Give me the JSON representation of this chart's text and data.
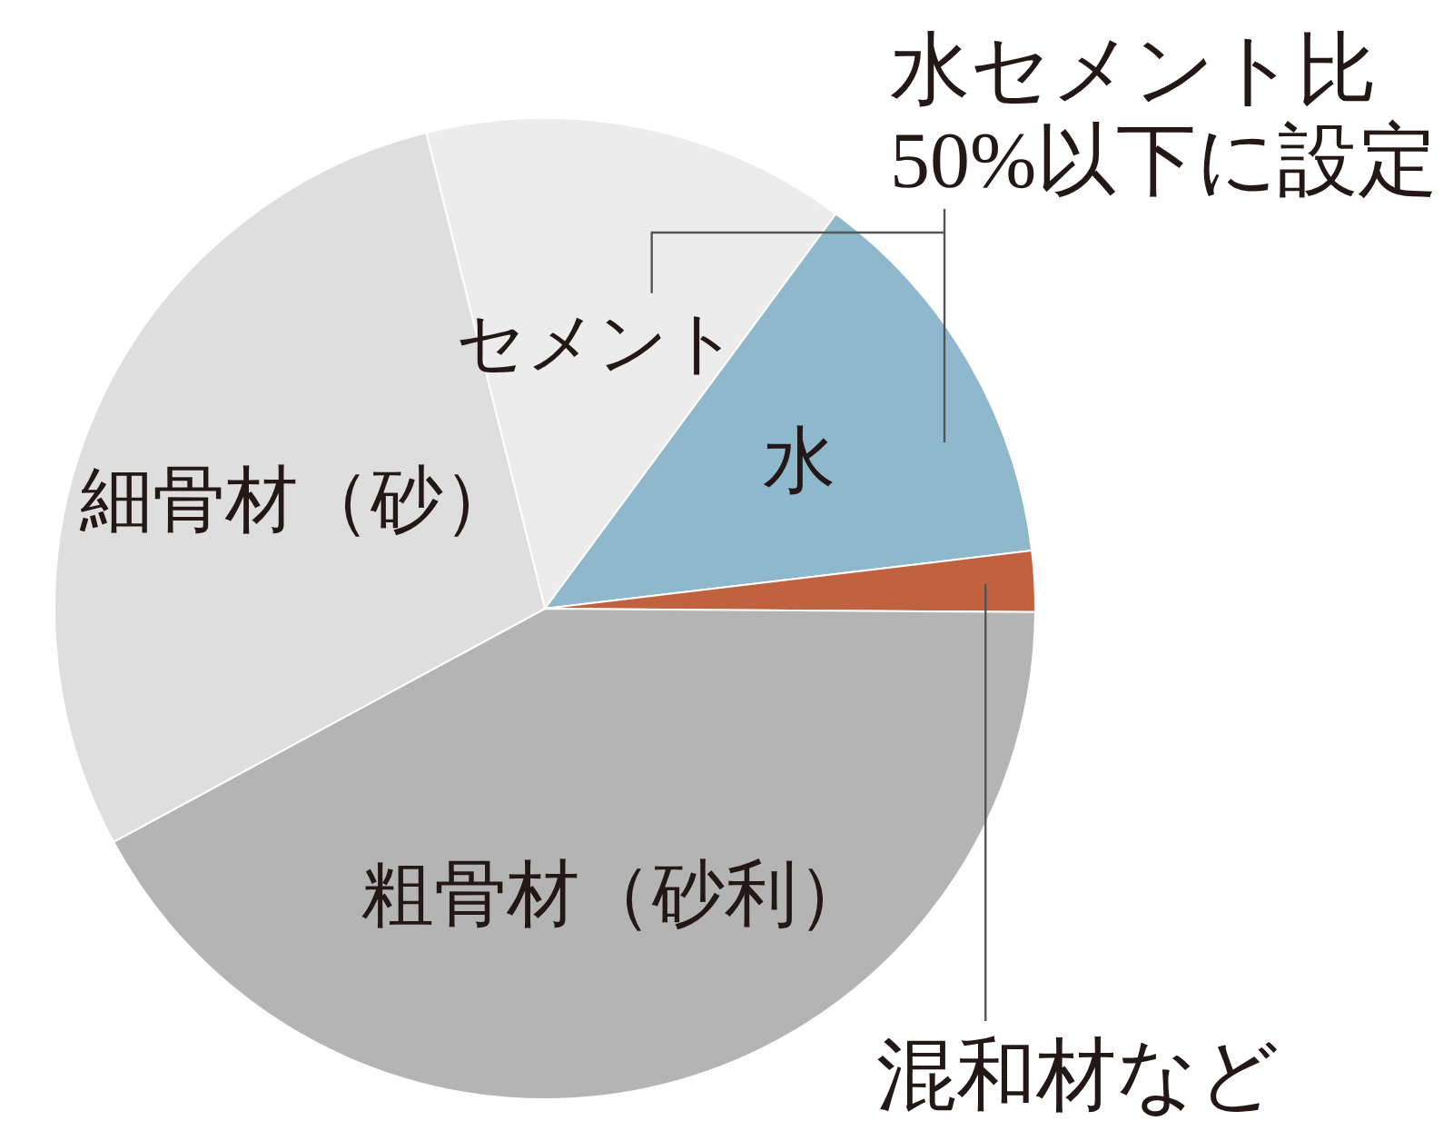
{
  "chart_data": {
    "type": "pie",
    "categories": [
      "セメント",
      "水",
      "混和材など",
      "粗骨材（砂利）",
      "細骨材（砂）"
    ],
    "values": [
      14,
      13,
      2,
      42,
      29
    ],
    "colors": [
      "#ececec",
      "#8fb8cd",
      "#c0623f",
      "#b4b4b4",
      "#dedede"
    ],
    "annotations": [
      "水セメント比\n50%以下に設定"
    ]
  }
}
